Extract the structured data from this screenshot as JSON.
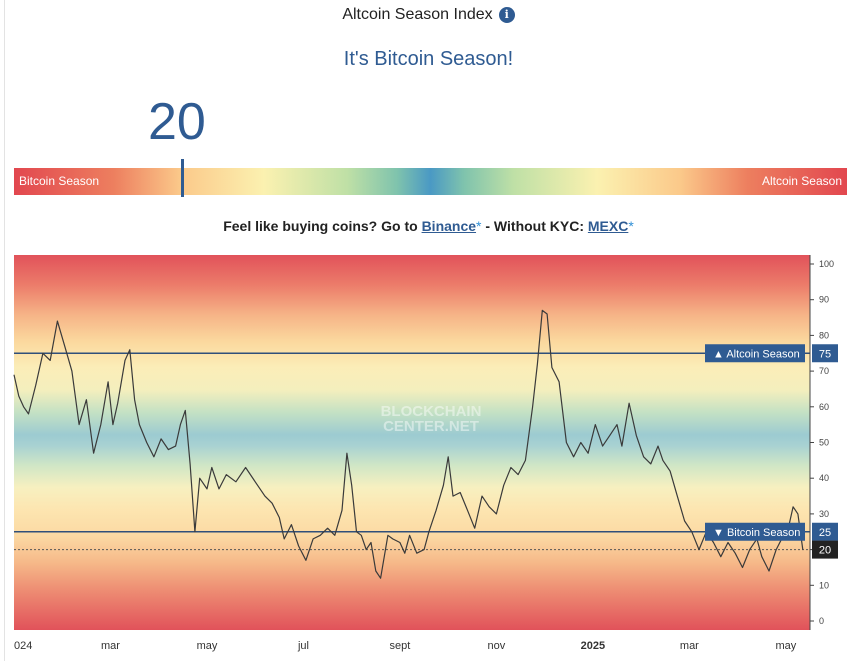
{
  "header": {
    "title": "Altcoin Season Index",
    "info_icon": "info-icon"
  },
  "status": "It's Bitcoin Season!",
  "index_value": "20",
  "gauge": {
    "left_label": "Bitcoin Season",
    "right_label": "Altcoin Season",
    "value": 20
  },
  "promo": {
    "prefix": "Feel like buying coins? Go to ",
    "link1": "Binance",
    "star": "*",
    "middle": " - Without KYC: ",
    "link2": "MEXC"
  },
  "watermark": {
    "line1": "BLOCKCHAIN",
    "line2": "CENTER.NET"
  },
  "chart_data": {
    "type": "line",
    "ylim": [
      0,
      100
    ],
    "yticks": [
      0,
      10,
      20,
      30,
      40,
      50,
      60,
      70,
      80,
      90,
      100
    ],
    "xticks": [
      {
        "label": "024",
        "month": 0
      },
      {
        "label": "mar",
        "month": 2
      },
      {
        "label": "may",
        "month": 4
      },
      {
        "label": "jul",
        "month": 6
      },
      {
        "label": "sept",
        "month": 8
      },
      {
        "label": "nov",
        "month": 10
      },
      {
        "label": "2025",
        "month": 12
      },
      {
        "label": "mar",
        "month": 14
      },
      {
        "label": "may",
        "month": 16
      }
    ],
    "x_range_months": [
      0,
      16.5
    ],
    "reference_lines": [
      {
        "label": "Altcoin Season",
        "value": 75,
        "value_label": "75",
        "arrow": "▲"
      },
      {
        "label": "Bitcoin Season",
        "value": 25,
        "value_label": "25",
        "arrow": "▼"
      }
    ],
    "current": {
      "value": 20,
      "label": "20"
    },
    "series": [
      {
        "points": [
          [
            0.0,
            69
          ],
          [
            0.1,
            63
          ],
          [
            0.2,
            60
          ],
          [
            0.3,
            58
          ],
          [
            0.45,
            66
          ],
          [
            0.6,
            75
          ],
          [
            0.75,
            73
          ],
          [
            0.9,
            84
          ],
          [
            1.05,
            77
          ],
          [
            1.2,
            70
          ],
          [
            1.35,
            55
          ],
          [
            1.5,
            62
          ],
          [
            1.65,
            47
          ],
          [
            1.8,
            55
          ],
          [
            1.95,
            67
          ],
          [
            2.05,
            55
          ],
          [
            2.15,
            61
          ],
          [
            2.3,
            73
          ],
          [
            2.4,
            76
          ],
          [
            2.5,
            62
          ],
          [
            2.6,
            55
          ],
          [
            2.75,
            50
          ],
          [
            2.9,
            46
          ],
          [
            3.05,
            51
          ],
          [
            3.2,
            48
          ],
          [
            3.35,
            49
          ],
          [
            3.45,
            55
          ],
          [
            3.55,
            59
          ],
          [
            3.65,
            44
          ],
          [
            3.75,
            25
          ],
          [
            3.85,
            40
          ],
          [
            4.0,
            37
          ],
          [
            4.1,
            43
          ],
          [
            4.25,
            37
          ],
          [
            4.4,
            41
          ],
          [
            4.6,
            39
          ],
          [
            4.8,
            43
          ],
          [
            5.0,
            39
          ],
          [
            5.2,
            35
          ],
          [
            5.35,
            33
          ],
          [
            5.5,
            29
          ],
          [
            5.6,
            23
          ],
          [
            5.75,
            27
          ],
          [
            5.9,
            21
          ],
          [
            6.05,
            17
          ],
          [
            6.2,
            23
          ],
          [
            6.35,
            24
          ],
          [
            6.5,
            26
          ],
          [
            6.65,
            24
          ],
          [
            6.8,
            31
          ],
          [
            6.9,
            47
          ],
          [
            7.0,
            38
          ],
          [
            7.1,
            25
          ],
          [
            7.2,
            24
          ],
          [
            7.3,
            20
          ],
          [
            7.4,
            22
          ],
          [
            7.5,
            14
          ],
          [
            7.6,
            12
          ],
          [
            7.75,
            24
          ],
          [
            7.85,
            23
          ],
          [
            8.0,
            22
          ],
          [
            8.1,
            19
          ],
          [
            8.2,
            24
          ],
          [
            8.35,
            19
          ],
          [
            8.5,
            20
          ],
          [
            8.6,
            25
          ],
          [
            8.75,
            31
          ],
          [
            8.9,
            38
          ],
          [
            9.0,
            46
          ],
          [
            9.1,
            35
          ],
          [
            9.25,
            36
          ],
          [
            9.4,
            31
          ],
          [
            9.55,
            26
          ],
          [
            9.7,
            35
          ],
          [
            9.85,
            32
          ],
          [
            10.0,
            30
          ],
          [
            10.15,
            38
          ],
          [
            10.3,
            43
          ],
          [
            10.45,
            41
          ],
          [
            10.6,
            45
          ],
          [
            10.75,
            60
          ],
          [
            10.85,
            72
          ],
          [
            10.95,
            87
          ],
          [
            11.05,
            86
          ],
          [
            11.15,
            71
          ],
          [
            11.3,
            67
          ],
          [
            11.45,
            50
          ],
          [
            11.6,
            46
          ],
          [
            11.75,
            50
          ],
          [
            11.9,
            47
          ],
          [
            12.05,
            55
          ],
          [
            12.2,
            49
          ],
          [
            12.35,
            52
          ],
          [
            12.5,
            55
          ],
          [
            12.6,
            49
          ],
          [
            12.75,
            61
          ],
          [
            12.9,
            52
          ],
          [
            13.05,
            46
          ],
          [
            13.2,
            44
          ],
          [
            13.35,
            49
          ],
          [
            13.45,
            45
          ],
          [
            13.6,
            42
          ],
          [
            13.75,
            35
          ],
          [
            13.9,
            28
          ],
          [
            14.05,
            25
          ],
          [
            14.2,
            20
          ],
          [
            14.35,
            25
          ],
          [
            14.5,
            22
          ],
          [
            14.65,
            18
          ],
          [
            14.8,
            22
          ],
          [
            14.95,
            19
          ],
          [
            15.1,
            15
          ],
          [
            15.25,
            20
          ],
          [
            15.4,
            23
          ],
          [
            15.5,
            18
          ],
          [
            15.65,
            14
          ],
          [
            15.8,
            20
          ],
          [
            15.95,
            24
          ],
          [
            16.05,
            26
          ],
          [
            16.15,
            32
          ],
          [
            16.25,
            30
          ],
          [
            16.35,
            20
          ]
        ]
      }
    ]
  },
  "colors": {
    "accent": "#2f5b92",
    "line": "#3a3a3a"
  }
}
